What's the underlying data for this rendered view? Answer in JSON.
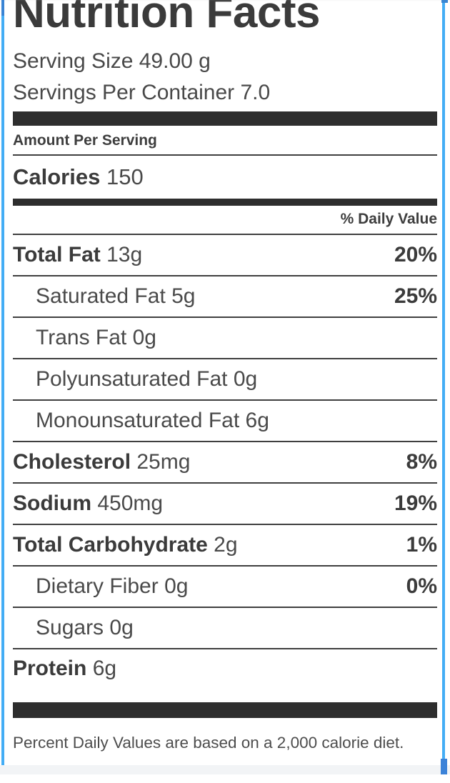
{
  "label": {
    "title": "Nutrition Facts",
    "serving_size": "Serving Size 49.00 g",
    "servings_per_container": "Servings Per Container 7.0",
    "amount_per_serving": "Amount Per Serving",
    "calories_label": "Calories",
    "calories_value": "150",
    "daily_value_header": "% Daily Value",
    "rows": [
      {
        "name": "Total Fat",
        "amount": "13g",
        "dv": "20%"
      },
      {
        "name": "Saturated Fat",
        "amount": "5g",
        "dv": "25%"
      },
      {
        "name": "Trans Fat",
        "amount": "0g",
        "dv": ""
      },
      {
        "name": "Polyunsaturated Fat",
        "amount": "0g",
        "dv": ""
      },
      {
        "name": "Monounsaturated Fat",
        "amount": "6g",
        "dv": ""
      },
      {
        "name": "Cholesterol",
        "amount": "25mg",
        "dv": "8%"
      },
      {
        "name": "Sodium",
        "amount": "450mg",
        "dv": "19%"
      },
      {
        "name": "Total Carbohydrate",
        "amount": "2g",
        "dv": "1%"
      },
      {
        "name": "Dietary Fiber",
        "amount": "0g",
        "dv": "0%"
      },
      {
        "name": "Sugars",
        "amount": "0g",
        "dv": ""
      },
      {
        "name": "Protein",
        "amount": "6g",
        "dv": ""
      }
    ],
    "footnote": "Percent Daily Values are based on a 2,000 calorie diet.",
    "colors": {
      "border_blue": "#43adf5",
      "scroll_thumb_blue": "#3a86d2",
      "divider_dark": "#3f3f3f",
      "bar_black": "#2e2e2e",
      "text_dark": "#414141",
      "bottom_strip_gray": "#f2f4f6"
    }
  }
}
